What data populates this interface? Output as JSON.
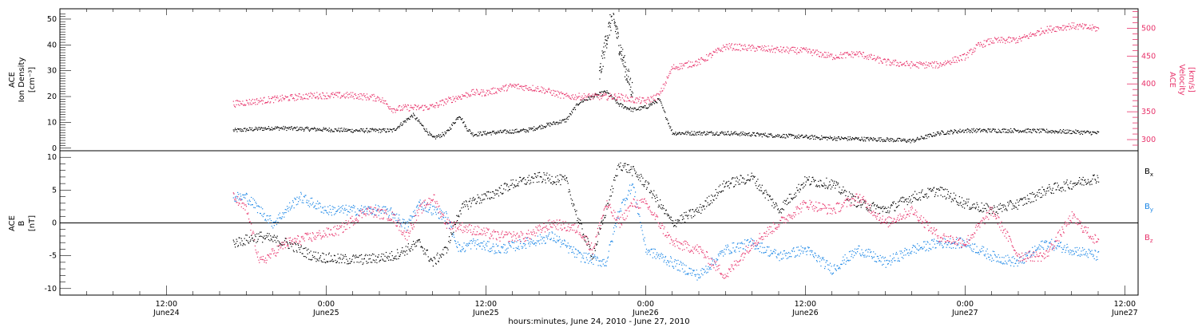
{
  "figure": {
    "xlabel": "hours:minutes, June 24, 2010 - June 27, 2010",
    "time_ticks": [
      {
        "t": 12,
        "line1": "12:00",
        "line2": "June24"
      },
      {
        "t": 24,
        "line1": "0:00",
        "line2": "June25"
      },
      {
        "t": 36,
        "line1": "12:00",
        "line2": "June25"
      },
      {
        "t": 48,
        "line1": "0:00",
        "line2": "June26"
      },
      {
        "t": 60,
        "line1": "12:00",
        "line2": "June26"
      },
      {
        "t": 72,
        "line1": "0:00",
        "line2": "June27"
      },
      {
        "t": 84,
        "line1": "12:00",
        "line2": "June27"
      }
    ],
    "colors": {
      "black": "#000000",
      "pink": "#e8336b",
      "blue": "#1a86e6"
    }
  },
  "chart_data": [
    {
      "type": "scatter",
      "panel": "top",
      "ylabel_left": [
        "ACE",
        "Ion Density",
        "[cm⁻³]"
      ],
      "ylabel_right": [
        "ACE",
        "Velocity",
        "[km/s]"
      ],
      "ylim_left": [
        -1,
        54
      ],
      "yticks_left": [
        0,
        10,
        20,
        30,
        40,
        50
      ],
      "ylim_right": [
        280,
        535
      ],
      "yticks_right": [
        300,
        350,
        400,
        450,
        500
      ],
      "xlim": [
        4,
        85
      ],
      "series": [
        {
          "name": "",
          "axis": "left",
          "color": "#000000",
          "x": [
            17,
            20,
            23,
            26,
            29,
            30.5,
            32,
            33,
            34,
            34.5,
            35,
            36,
            39,
            42,
            43,
            45,
            46,
            47,
            48,
            49,
            50,
            54,
            58,
            62,
            66,
            68,
            70,
            72,
            76,
            80,
            82
          ],
          "y": [
            7,
            8,
            7.5,
            7,
            7,
            13,
            4,
            6,
            13,
            8,
            5.5,
            6,
            7,
            11,
            18,
            22,
            17,
            15,
            16,
            19,
            6,
            6,
            5,
            4,
            3.5,
            3,
            6,
            7,
            7,
            6.5,
            6
          ]
        },
        {
          "name": "",
          "axis": "left",
          "color": "#000000",
          "x": [
            44.5,
            45,
            45.5,
            46,
            46.5,
            47
          ],
          "y": [
            28,
            42,
            52,
            40,
            30,
            22
          ]
        },
        {
          "name": "",
          "axis": "right",
          "color": "#e8336b",
          "x": [
            17,
            20,
            23,
            26,
            28,
            29,
            30,
            31,
            32,
            33,
            35,
            36,
            38,
            40,
            42,
            44,
            46,
            47,
            48,
            49,
            50,
            52,
            54,
            56,
            58,
            60,
            62,
            64,
            66,
            68,
            70,
            72,
            73,
            74,
            76,
            78,
            80,
            82
          ],
          "y": [
            365,
            373,
            380,
            380,
            375,
            355,
            358,
            358,
            360,
            370,
            385,
            385,
            397,
            392,
            378,
            378,
            378,
            372,
            370,
            380,
            430,
            440,
            468,
            465,
            462,
            460,
            450,
            455,
            440,
            435,
            435,
            450,
            470,
            478,
            480,
            498,
            505,
            500
          ]
        }
      ]
    },
    {
      "type": "scatter",
      "panel": "bottom",
      "ylabel_left": [
        "ACE",
        "B",
        "[nT]"
      ],
      "ylim": [
        -11,
        11
      ],
      "yticks": [
        -10,
        -5,
        0,
        5,
        10
      ],
      "xlim": [
        4,
        85
      ],
      "zero_line": true,
      "series": [
        {
          "name": "Bx",
          "color": "#000000",
          "x": [
            17,
            19,
            21,
            23,
            25,
            27,
            29,
            31,
            32,
            33,
            34,
            35,
            36,
            38,
            40,
            42,
            43,
            44,
            45,
            46,
            47,
            48,
            50,
            52,
            54,
            56,
            58,
            60,
            62,
            64,
            66,
            68,
            70,
            72,
            74,
            76,
            78,
            80,
            82
          ],
          "y": [
            -3,
            -2,
            -3,
            -5,
            -5.5,
            -5.5,
            -5,
            -3,
            -6,
            -4,
            2,
            3.5,
            4,
            6,
            7,
            6.5,
            0,
            -5,
            2,
            9,
            8,
            6,
            0,
            2,
            6,
            7,
            2,
            6.5,
            6,
            3,
            2,
            4,
            5,
            3,
            2,
            3,
            5,
            6,
            7
          ]
        },
        {
          "name": "By",
          "color": "#1a86e6",
          "x": [
            17,
            18,
            20,
            22,
            24,
            26,
            28,
            29,
            30,
            31,
            32,
            33,
            34,
            35,
            37,
            39,
            41,
            43,
            45,
            46,
            47,
            48,
            50,
            52,
            54,
            56,
            58,
            60,
            62,
            64,
            66,
            68,
            70,
            72,
            74,
            76,
            78,
            80,
            82
          ],
          "y": [
            4,
            4,
            0,
            4,
            2,
            2,
            2,
            1.5,
            -0.5,
            3,
            2,
            1,
            -4,
            -3,
            -4,
            -3,
            -2,
            -5,
            -6,
            2,
            6,
            -4,
            -6,
            -8,
            -4,
            -3,
            -5,
            -4,
            -7,
            -4,
            -6,
            -4,
            -3,
            -3,
            -5,
            -6,
            -3,
            -4,
            -5
          ]
        },
        {
          "name": "Bz",
          "color": "#e8336b",
          "x": [
            17,
            18,
            19,
            21,
            23,
            25,
            27,
            29,
            30,
            31,
            32,
            33,
            35,
            37,
            39,
            41,
            43,
            44,
            45,
            46,
            47,
            48,
            50,
            52,
            54,
            56,
            58,
            60,
            62,
            64,
            66,
            68,
            70,
            72,
            74,
            76,
            78,
            80,
            82
          ],
          "y": [
            4,
            2,
            -6,
            -3,
            -2,
            -1,
            2,
            1,
            -2,
            2,
            4,
            0,
            -1,
            -2,
            -2,
            0,
            -1,
            -4,
            3,
            0,
            3,
            3,
            -3,
            -4,
            -8,
            -3,
            0,
            3,
            2,
            4,
            0,
            2,
            -2,
            -3,
            2,
            -5,
            -5,
            1,
            -3
          ]
        }
      ]
    }
  ]
}
